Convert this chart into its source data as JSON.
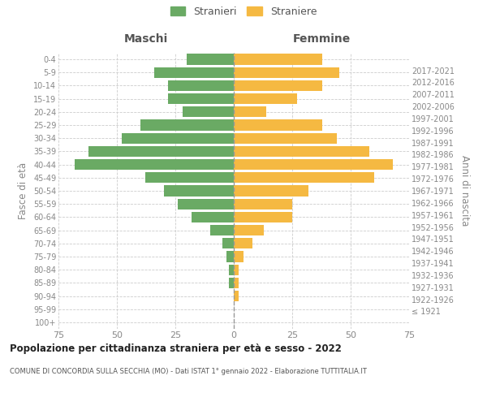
{
  "age_groups": [
    "100+",
    "95-99",
    "90-94",
    "85-89",
    "80-84",
    "75-79",
    "70-74",
    "65-69",
    "60-64",
    "55-59",
    "50-54",
    "45-49",
    "40-44",
    "35-39",
    "30-34",
    "25-29",
    "20-24",
    "15-19",
    "10-14",
    "5-9",
    "0-4"
  ],
  "birth_years": [
    "≤ 1921",
    "1922-1926",
    "1927-1931",
    "1932-1936",
    "1937-1941",
    "1942-1946",
    "1947-1951",
    "1952-1956",
    "1957-1961",
    "1962-1966",
    "1967-1971",
    "1972-1976",
    "1977-1981",
    "1982-1986",
    "1987-1991",
    "1992-1996",
    "1997-2001",
    "2002-2006",
    "2007-2011",
    "2012-2016",
    "2017-2021"
  ],
  "males": [
    0,
    0,
    0,
    2,
    2,
    3,
    5,
    10,
    18,
    24,
    30,
    38,
    68,
    62,
    48,
    40,
    22,
    28,
    28,
    34,
    20
  ],
  "females": [
    0,
    0,
    2,
    2,
    2,
    4,
    8,
    13,
    25,
    25,
    32,
    60,
    68,
    58,
    44,
    38,
    14,
    27,
    38,
    45,
    38
  ],
  "male_color": "#6aaa64",
  "female_color": "#f5b942",
  "background_color": "#ffffff",
  "grid_color": "#cccccc",
  "xlim": 75,
  "title": "Popolazione per cittadinanza straniera per età e sesso - 2022",
  "subtitle": "COMUNE DI CONCORDIA SULLA SECCHIA (MO) - Dati ISTAT 1° gennaio 2022 - Elaborazione TUTTITALIA.IT",
  "xlabel_left": "Maschi",
  "xlabel_right": "Femmine",
  "ylabel_left": "Fasce di età",
  "ylabel_right": "Anni di nascita",
  "legend_male": "Stranieri",
  "legend_female": "Straniere"
}
